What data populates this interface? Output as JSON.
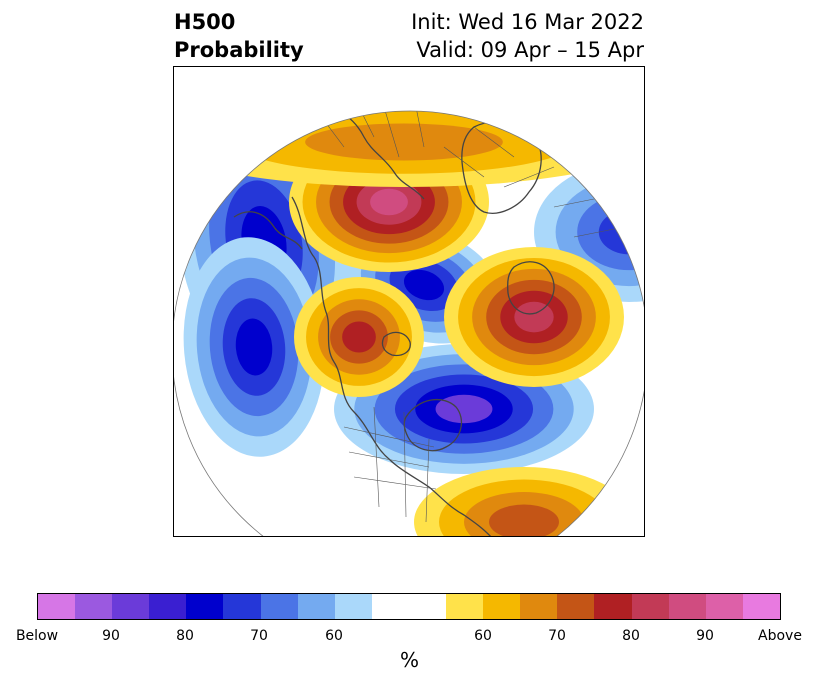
{
  "header": {
    "title_line1": "H500",
    "title_line2": "Probability",
    "init_text": "Init: Wed 16 Mar 2022",
    "valid_text": "Valid: 09 Apr – 15 Apr"
  },
  "colorbar": {
    "colors": [
      "#d676e6",
      "#9b59e0",
      "#6b3bd9",
      "#3a1fd1",
      "#0000cd",
      "#2537d8",
      "#4b74e6",
      "#74aaf0",
      "#aad8fa",
      "#ffffff",
      "#ffffff",
      "#ffe24a",
      "#f5b800",
      "#e0890e",
      "#c45516",
      "#b02023",
      "#c23a56",
      "#d04c80",
      "#dd60a8",
      "#e87ae0"
    ],
    "labels": [
      "Below",
      "90",
      "80",
      "70",
      "60",
      "60",
      "70",
      "80",
      "90",
      "Above"
    ],
    "unit": "%"
  },
  "map": {
    "below_color_scale": [
      "#aad8fa",
      "#74aaf0",
      "#4b74e6",
      "#2537d8",
      "#0000cd",
      "#6b3bd9"
    ],
    "above_color_scale": [
      "#ffe24a",
      "#f5b800",
      "#e0890e",
      "#c45516",
      "#b02023",
      "#c23a56",
      "#d04c80"
    ],
    "anomalies": [
      {
        "kind": "below",
        "levels": 5
      },
      {
        "kind": "below",
        "levels": 5
      },
      {
        "kind": "below",
        "levels": 5
      },
      {
        "kind": "below",
        "levels": 4
      },
      {
        "kind": "below",
        "levels": 6
      },
      {
        "kind": "above",
        "levels": 7
      },
      {
        "kind": "above",
        "levels": 6
      },
      {
        "kind": "above",
        "levels": 5
      },
      {
        "kind": "above",
        "levels": 4
      },
      {
        "kind": "above",
        "levels": 3
      }
    ]
  }
}
